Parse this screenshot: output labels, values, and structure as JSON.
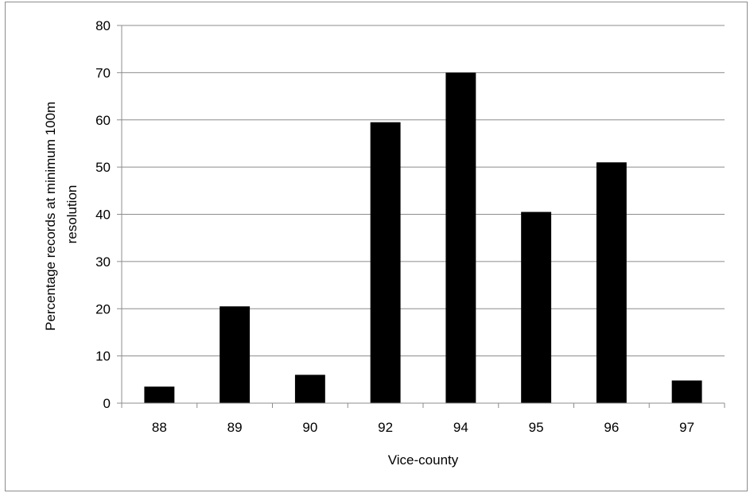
{
  "chart_data": {
    "type": "bar",
    "categories": [
      "88",
      "89",
      "90",
      "92",
      "94",
      "95",
      "96",
      "97"
    ],
    "values": [
      3.5,
      20.5,
      6,
      59.5,
      70,
      40.5,
      51,
      4.8
    ],
    "xlabel": "Vice-county",
    "ylabel_lines": [
      "Percentage records at minimum 100m",
      "resolution"
    ],
    "ylim": [
      0,
      80
    ],
    "yticks": [
      "0",
      "10",
      "20",
      "30",
      "40",
      "50",
      "60",
      "70",
      "80"
    ],
    "grid": true,
    "legend": "none",
    "colors": {
      "bar": "#000000",
      "grid": "#8c8c8c",
      "axis": "#8c8c8c"
    }
  }
}
